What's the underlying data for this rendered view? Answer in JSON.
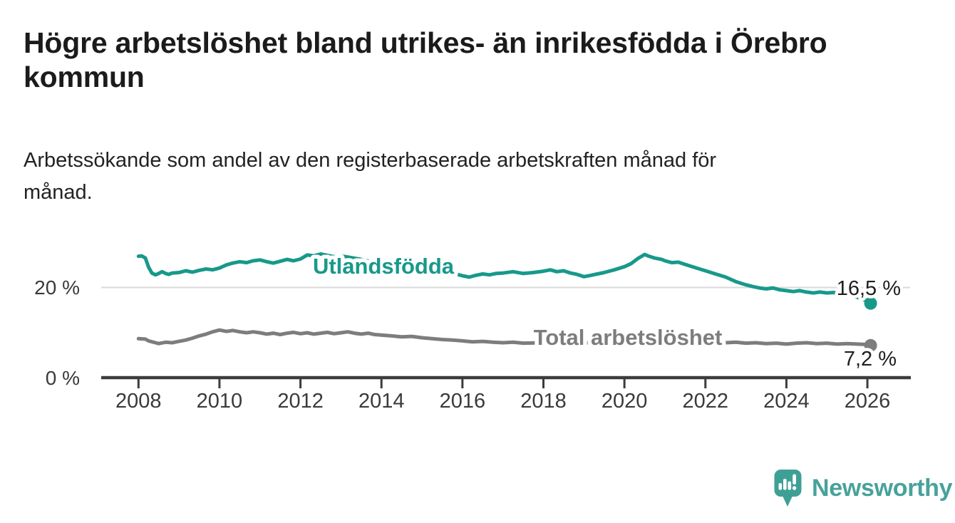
{
  "header": {
    "title_line1": "Högre arbetslöshet bland utrikes- än inrikesfödda i Örebro",
    "title_line2": "kommun",
    "subtitle_line1": "Arbetssökande som andel av den registerbaserade arbetskraften månad för",
    "subtitle_line2": "månad."
  },
  "branding": {
    "logo_text": "Newsworthy",
    "logo_icon": "speech-bubble-bar-chart-icon",
    "logo_color": "#47a29a"
  },
  "colors": {
    "accent_teal": "#17998a",
    "line_gray": "#7d7d7d",
    "axis": "#3c3c3c",
    "gridline": "#d9d9d9",
    "text_dark": "#1b1b1b"
  },
  "chart_data": {
    "type": "line",
    "title": "Högre arbetslöshet bland utrikes- än inrikesfödda i Örebro kommun",
    "subtitle": "Arbetssökande som andel av den registerbaserade arbetskraften månad för månad.",
    "xlabel": "",
    "ylabel": "",
    "x_axis": {
      "ticks": [
        2008,
        2010,
        2012,
        2014,
        2016,
        2018,
        2020,
        2022,
        2024,
        2026
      ],
      "range_years": [
        2007.1,
        2027.1
      ]
    },
    "y_axis": {
      "ticks": [
        {
          "value": 0,
          "label": "0 %"
        },
        {
          "value": 20,
          "label": "20 %"
        }
      ],
      "range": [
        0,
        31.5
      ],
      "unit": "%"
    },
    "grid": "single horizontal gridline at 20 %",
    "legend_position": "inline labels on lines, end-value labels at right",
    "series": [
      {
        "name": "Utlandsfödda",
        "color": "#17998a",
        "end_label": "16,5 %",
        "end_value": 16.5,
        "points": [
          [
            2008.0,
            26.9
          ],
          [
            2008.08,
            27.0
          ],
          [
            2008.17,
            26.5
          ],
          [
            2008.25,
            24.5
          ],
          [
            2008.33,
            23.2
          ],
          [
            2008.42,
            22.8
          ],
          [
            2008.5,
            23.1
          ],
          [
            2008.58,
            23.5
          ],
          [
            2008.67,
            23.1
          ],
          [
            2008.75,
            22.9
          ],
          [
            2008.83,
            23.2
          ],
          [
            2009.0,
            23.3
          ],
          [
            2009.17,
            23.7
          ],
          [
            2009.33,
            23.4
          ],
          [
            2009.5,
            23.8
          ],
          [
            2009.67,
            24.1
          ],
          [
            2009.83,
            23.9
          ],
          [
            2010.0,
            24.3
          ],
          [
            2010.17,
            25.0
          ],
          [
            2010.33,
            25.4
          ],
          [
            2010.5,
            25.7
          ],
          [
            2010.67,
            25.5
          ],
          [
            2010.83,
            25.9
          ],
          [
            2011.0,
            26.1
          ],
          [
            2011.17,
            25.7
          ],
          [
            2011.33,
            25.4
          ],
          [
            2011.5,
            25.8
          ],
          [
            2011.67,
            26.2
          ],
          [
            2011.83,
            25.9
          ],
          [
            2012.0,
            26.3
          ],
          [
            2012.17,
            27.2
          ],
          [
            2012.33,
            27.0
          ],
          [
            2012.5,
            27.4
          ],
          [
            2012.67,
            27.1
          ],
          [
            2012.83,
            26.8
          ],
          [
            2013.0,
            27.0
          ],
          [
            2013.25,
            26.6
          ],
          [
            2013.5,
            26.2
          ],
          [
            2013.75,
            25.7
          ],
          [
            2014.0,
            25.3
          ],
          [
            2014.25,
            24.9
          ],
          [
            2014.5,
            24.5
          ],
          [
            2014.75,
            24.2
          ],
          [
            2015.0,
            23.9
          ],
          [
            2015.25,
            23.7
          ],
          [
            2015.5,
            23.5
          ],
          [
            2015.75,
            23.2
          ],
          [
            2016.0,
            22.6
          ],
          [
            2016.17,
            22.3
          ],
          [
            2016.33,
            22.7
          ],
          [
            2016.5,
            23.0
          ],
          [
            2016.67,
            22.8
          ],
          [
            2016.83,
            23.1
          ],
          [
            2017.0,
            23.2
          ],
          [
            2017.25,
            23.5
          ],
          [
            2017.5,
            23.1
          ],
          [
            2017.75,
            23.3
          ],
          [
            2018.0,
            23.6
          ],
          [
            2018.17,
            23.9
          ],
          [
            2018.33,
            23.5
          ],
          [
            2018.5,
            23.7
          ],
          [
            2018.67,
            23.2
          ],
          [
            2018.83,
            22.9
          ],
          [
            2019.0,
            22.4
          ],
          [
            2019.17,
            22.7
          ],
          [
            2019.33,
            23.0
          ],
          [
            2019.5,
            23.3
          ],
          [
            2019.75,
            23.9
          ],
          [
            2020.0,
            24.6
          ],
          [
            2020.17,
            25.3
          ],
          [
            2020.33,
            26.4
          ],
          [
            2020.5,
            27.3
          ],
          [
            2020.58,
            27.0
          ],
          [
            2020.75,
            26.5
          ],
          [
            2020.92,
            26.2
          ],
          [
            2021.0,
            25.9
          ],
          [
            2021.17,
            25.5
          ],
          [
            2021.33,
            25.6
          ],
          [
            2021.5,
            25.1
          ],
          [
            2021.75,
            24.4
          ],
          [
            2022.0,
            23.7
          ],
          [
            2022.25,
            23.0
          ],
          [
            2022.5,
            22.3
          ],
          [
            2022.75,
            21.3
          ],
          [
            2023.0,
            20.6
          ],
          [
            2023.17,
            20.2
          ],
          [
            2023.33,
            19.9
          ],
          [
            2023.5,
            19.7
          ],
          [
            2023.67,
            19.9
          ],
          [
            2023.83,
            19.5
          ],
          [
            2024.0,
            19.3
          ],
          [
            2024.17,
            19.1
          ],
          [
            2024.33,
            19.3
          ],
          [
            2024.5,
            19.0
          ],
          [
            2024.67,
            18.8
          ],
          [
            2024.83,
            19.0
          ],
          [
            2025.0,
            18.8
          ],
          [
            2025.17,
            18.9
          ],
          [
            2025.33,
            18.6
          ],
          [
            2025.5,
            18.4
          ],
          [
            2025.67,
            18.1
          ],
          [
            2025.83,
            17.6
          ],
          [
            2026.0,
            17.0
          ],
          [
            2026.08,
            16.5
          ]
        ]
      },
      {
        "name": "Total arbetslöshet",
        "color": "#7d7d7d",
        "end_label": "7,2 %",
        "end_value": 7.2,
        "points": [
          [
            2008.0,
            8.7
          ],
          [
            2008.17,
            8.6
          ],
          [
            2008.25,
            8.2
          ],
          [
            2008.42,
            7.8
          ],
          [
            2008.5,
            7.6
          ],
          [
            2008.67,
            7.9
          ],
          [
            2008.83,
            7.8
          ],
          [
            2009.0,
            8.1
          ],
          [
            2009.17,
            8.4
          ],
          [
            2009.33,
            8.8
          ],
          [
            2009.5,
            9.3
          ],
          [
            2009.67,
            9.7
          ],
          [
            2009.83,
            10.2
          ],
          [
            2010.0,
            10.6
          ],
          [
            2010.17,
            10.3
          ],
          [
            2010.33,
            10.5
          ],
          [
            2010.5,
            10.2
          ],
          [
            2010.67,
            10.0
          ],
          [
            2010.83,
            10.2
          ],
          [
            2011.0,
            10.0
          ],
          [
            2011.17,
            9.7
          ],
          [
            2011.33,
            9.9
          ],
          [
            2011.5,
            9.6
          ],
          [
            2011.67,
            9.9
          ],
          [
            2011.83,
            10.1
          ],
          [
            2012.0,
            9.8
          ],
          [
            2012.17,
            10.0
          ],
          [
            2012.33,
            9.7
          ],
          [
            2012.5,
            9.9
          ],
          [
            2012.67,
            10.1
          ],
          [
            2012.83,
            9.8
          ],
          [
            2013.0,
            10.0
          ],
          [
            2013.17,
            10.2
          ],
          [
            2013.33,
            9.9
          ],
          [
            2013.5,
            9.7
          ],
          [
            2013.67,
            9.9
          ],
          [
            2013.83,
            9.6
          ],
          [
            2014.0,
            9.5
          ],
          [
            2014.25,
            9.3
          ],
          [
            2014.5,
            9.1
          ],
          [
            2014.75,
            9.2
          ],
          [
            2015.0,
            8.9
          ],
          [
            2015.25,
            8.7
          ],
          [
            2015.5,
            8.5
          ],
          [
            2015.75,
            8.4
          ],
          [
            2016.0,
            8.2
          ],
          [
            2016.25,
            8.0
          ],
          [
            2016.5,
            8.1
          ],
          [
            2016.75,
            7.9
          ],
          [
            2017.0,
            7.8
          ],
          [
            2017.25,
            7.9
          ],
          [
            2017.5,
            7.7
          ],
          [
            2018.0,
            7.8
          ],
          [
            2018.5,
            7.7
          ],
          [
            2019.0,
            7.8
          ],
          [
            2019.5,
            7.9
          ],
          [
            2020.0,
            8.1
          ],
          [
            2020.33,
            8.6
          ],
          [
            2020.5,
            8.8
          ],
          [
            2020.75,
            8.5
          ],
          [
            2021.0,
            8.2
          ],
          [
            2021.5,
            7.9
          ],
          [
            2022.0,
            7.8
          ],
          [
            2022.5,
            7.8
          ],
          [
            2022.75,
            7.9
          ],
          [
            2023.0,
            7.7
          ],
          [
            2023.25,
            7.8
          ],
          [
            2023.5,
            7.6
          ],
          [
            2023.75,
            7.7
          ],
          [
            2024.0,
            7.5
          ],
          [
            2024.25,
            7.7
          ],
          [
            2024.5,
            7.8
          ],
          [
            2024.75,
            7.6
          ],
          [
            2025.0,
            7.7
          ],
          [
            2025.25,
            7.5
          ],
          [
            2025.5,
            7.6
          ],
          [
            2025.75,
            7.5
          ],
          [
            2026.0,
            7.4
          ],
          [
            2026.08,
            7.2
          ]
        ]
      }
    ]
  }
}
